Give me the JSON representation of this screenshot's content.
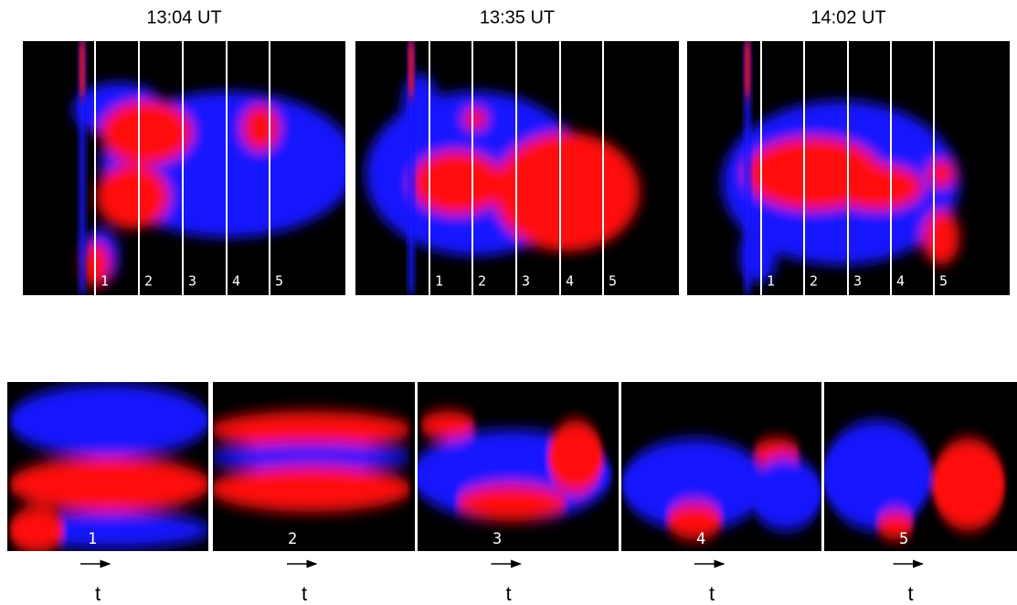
{
  "top_panels": [
    {
      "time": "13:04 UT",
      "slit_labels": [
        "1",
        "2",
        "3",
        "4",
        "5"
      ]
    },
    {
      "time": "13:35 UT",
      "slit_labels": [
        "1",
        "2",
        "3",
        "4",
        "5"
      ]
    },
    {
      "time": "14:02 UT",
      "slit_labels": [
        "1",
        "2",
        "3",
        "4",
        "5"
      ]
    }
  ],
  "bottom_panels": [
    {
      "label": "1",
      "axis_label": "t"
    },
    {
      "label": "2",
      "axis_label": "t"
    },
    {
      "label": "3",
      "axis_label": "t"
    },
    {
      "label": "4",
      "axis_label": "t"
    },
    {
      "label": "5",
      "axis_label": "t"
    }
  ]
}
